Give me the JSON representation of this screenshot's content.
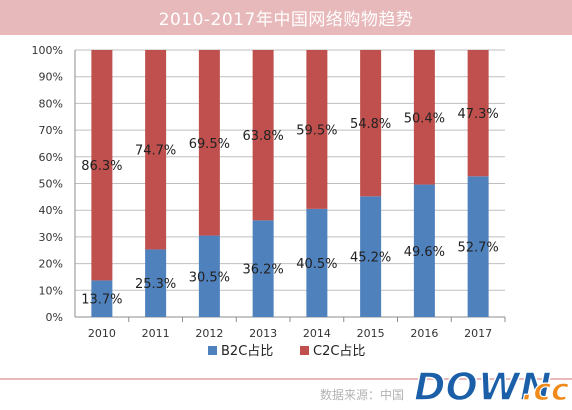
{
  "header": {
    "title": "2010-2017年中国网络购物趋势"
  },
  "footer": {
    "source": "数据来源：中国"
  },
  "watermark": {
    "text": "DOWN",
    "suffix": ".cc"
  },
  "colors": {
    "title_bg": "#e8b9bb",
    "b2c": "#4f81bd",
    "c2c": "#c0504d",
    "grid": "#bfbfbf",
    "watermark_fill": "#1a5fa8",
    "watermark_cc": "#f08a1a"
  },
  "chart_data": {
    "type": "bar",
    "stacked": true,
    "categories": [
      "2010",
      "2011",
      "2012",
      "2013",
      "2014",
      "2015",
      "2016",
      "2017"
    ],
    "series": [
      {
        "name": "B2C占比",
        "values": [
          13.7,
          25.3,
          30.5,
          36.2,
          40.5,
          45.2,
          49.6,
          52.7
        ],
        "labels": [
          "13.7%",
          "25.3%",
          "30.5%",
          "36.2%",
          "40.5%",
          "45.2%",
          "49.6%",
          "52.7%"
        ]
      },
      {
        "name": "C2C占比",
        "values": [
          86.3,
          74.7,
          69.5,
          63.8,
          59.5,
          54.8,
          50.4,
          47.3
        ],
        "labels": [
          "86.3%",
          "74.7%",
          "69.5%",
          "63.8%",
          "59.5%",
          "54.8%",
          "50.4%",
          "47.3%"
        ]
      }
    ],
    "yticks": [
      "0%",
      "10%",
      "20%",
      "30%",
      "40%",
      "50%",
      "60%",
      "70%",
      "80%",
      "90%",
      "100%"
    ],
    "ylim": [
      0,
      100
    ],
    "legend_position": "bottom"
  }
}
